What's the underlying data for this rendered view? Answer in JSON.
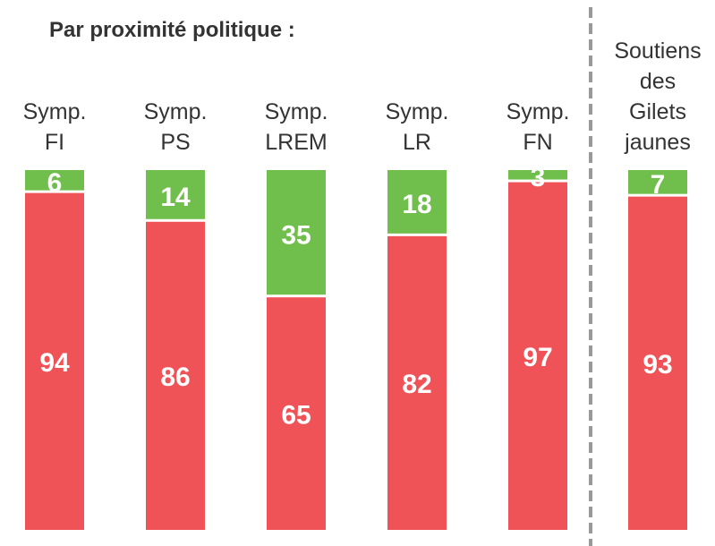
{
  "chart_data": {
    "type": "stacked_bar",
    "title": "Par proximité politique :",
    "categories": [
      "Symp. FI",
      "Symp. PS",
      "Symp. LREM",
      "Symp. LR",
      "Symp. FN",
      "Soutiens des Gilets jaunes"
    ],
    "series": [
      {
        "color": "#ef5257",
        "values": [
          94,
          86,
          65,
          82,
          97,
          93
        ]
      },
      {
        "color": "#70be4b",
        "values": [
          6,
          14,
          35,
          18,
          3,
          7
        ]
      }
    ],
    "ylim": [
      0,
      100
    ]
  }
}
